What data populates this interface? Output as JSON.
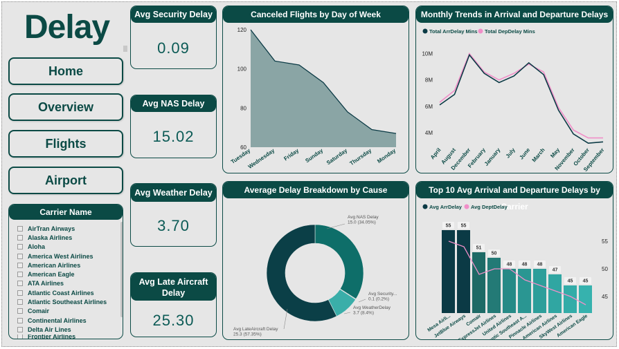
{
  "page_title": "Delay",
  "nav": [
    {
      "label": "Home"
    },
    {
      "label": "Overview"
    },
    {
      "label": "Flights"
    },
    {
      "label": "Airport"
    }
  ],
  "slicer": {
    "title": "Carrier Name",
    "items": [
      "AirTran Airways",
      "Alaska Airlines",
      "Aloha",
      "America West Airlines",
      "American Airlines",
      "American Eagle",
      "ATA Airlines",
      "Atlantic Coast Airlines",
      "Atlantic Southeast Airlines",
      "Comair",
      "Continental Airlines",
      "Delta Air Lines",
      "Frontier Airlines"
    ]
  },
  "kpis": {
    "security": {
      "label": "Avg Security Delay",
      "value": "0.09"
    },
    "nas": {
      "label": "Avg NAS Delay",
      "value": "15.02"
    },
    "weather": {
      "label": "Avg Weather Delay",
      "value": "3.70"
    },
    "late_aircraft": {
      "label": "Avg Late Aircraft Delay",
      "value": "25.30"
    }
  },
  "colors": {
    "brand": "#0b4a45",
    "area_fill": "#8aa5a5",
    "arr_line": "#0b3a45",
    "dep_line": "#f08fc8"
  },
  "charts": {
    "canceled": {
      "title": "Canceled Flights by Day of Week"
    },
    "monthly": {
      "title": "Monthly Trends in Arrival and Departure Delays",
      "legend": [
        "Total ArrDelay Mins",
        "Total DepDelay Mins"
      ]
    },
    "breakdown": {
      "title": "Average Delay Breakdown by Cause"
    },
    "top10": {
      "title": "Top 10 Avg Arrival and Departure Delays by Carrier",
      "legend": [
        "Avg ArrDelay",
        "Avg DeptDelay"
      ]
    }
  },
  "chart_data": [
    {
      "type": "area",
      "title": "Canceled Flights by Day of Week",
      "categories": [
        "Tuesday",
        "Wednesday",
        "Friday",
        "Sunday",
        "Saturday",
        "Thursday",
        "Monday"
      ],
      "values": [
        120,
        104,
        102,
        93,
        78,
        69,
        67
      ],
      "ylim": [
        60,
        120
      ],
      "yticks": [
        "60",
        "80",
        "100",
        "120"
      ]
    },
    {
      "type": "line",
      "title": "Monthly Trends in Arrival and Departure Delays",
      "categories": [
        "April",
        "August",
        "December",
        "February",
        "January",
        "July",
        "June",
        "March",
        "May",
        "November",
        "October",
        "September"
      ],
      "series": [
        {
          "name": "Total ArrDelay Mins",
          "values": [
            6.1,
            6.9,
            9.9,
            8.5,
            7.8,
            8.3,
            9.3,
            8.4,
            5.7,
            3.9,
            3.2,
            3.3
          ]
        },
        {
          "name": "Total DepDelay Mins",
          "values": [
            6.3,
            7.2,
            10.0,
            8.6,
            8.0,
            8.5,
            9.2,
            8.6,
            5.9,
            4.2,
            3.6,
            3.6
          ]
        }
      ],
      "ylim": [
        3,
        10.5
      ],
      "yticks": [
        "4M",
        "6M",
        "8M",
        "10M"
      ]
    },
    {
      "type": "pie",
      "title": "Average Delay Breakdown by Cause",
      "slices": [
        {
          "label": "Avg NAS Delay",
          "value": 15.0,
          "pct": "34.05%",
          "text": "15.0 (34.05%)"
        },
        {
          "label": "Avg Security...",
          "value": 0.1,
          "pct": "0.2%",
          "text": "0.1 (0.2%)"
        },
        {
          "label": "Avg WeatherDelay",
          "value": 3.7,
          "pct": "8.4%",
          "text": "3.7 (8.4%)"
        },
        {
          "label": "Avg LateAircraft Delay",
          "value": 25.3,
          "pct": "57.35%",
          "text": "25.3 (57.35%)"
        }
      ]
    },
    {
      "type": "bar",
      "title": "Top 10 Avg Arrival and Departure Delays by Carrier",
      "categories": [
        "Mesa Airli...",
        "JetBlue Airways",
        "Comair",
        "ExpressJet Airlines",
        "United Airlines",
        "Atlantic Southeast A...",
        "Pinnacle Airlines",
        "American Airlines",
        "SkyWest Airlines",
        "American Eagle"
      ],
      "series": [
        {
          "name": "Avg ArrDelay",
          "values": [
            55,
            55,
            51,
            50,
            48,
            48,
            48,
            47,
            45,
            45
          ],
          "labels": [
            "55",
            "55",
            "51",
            "50",
            "48",
            "48",
            "48",
            "47",
            "45",
            "45"
          ]
        },
        {
          "name": "Avg DeptDelay",
          "values": [
            55,
            54,
            49,
            50,
            50,
            48,
            47,
            46,
            45,
            43.5
          ]
        }
      ],
      "y2ticks": [
        "45",
        "50",
        "55"
      ]
    }
  ]
}
